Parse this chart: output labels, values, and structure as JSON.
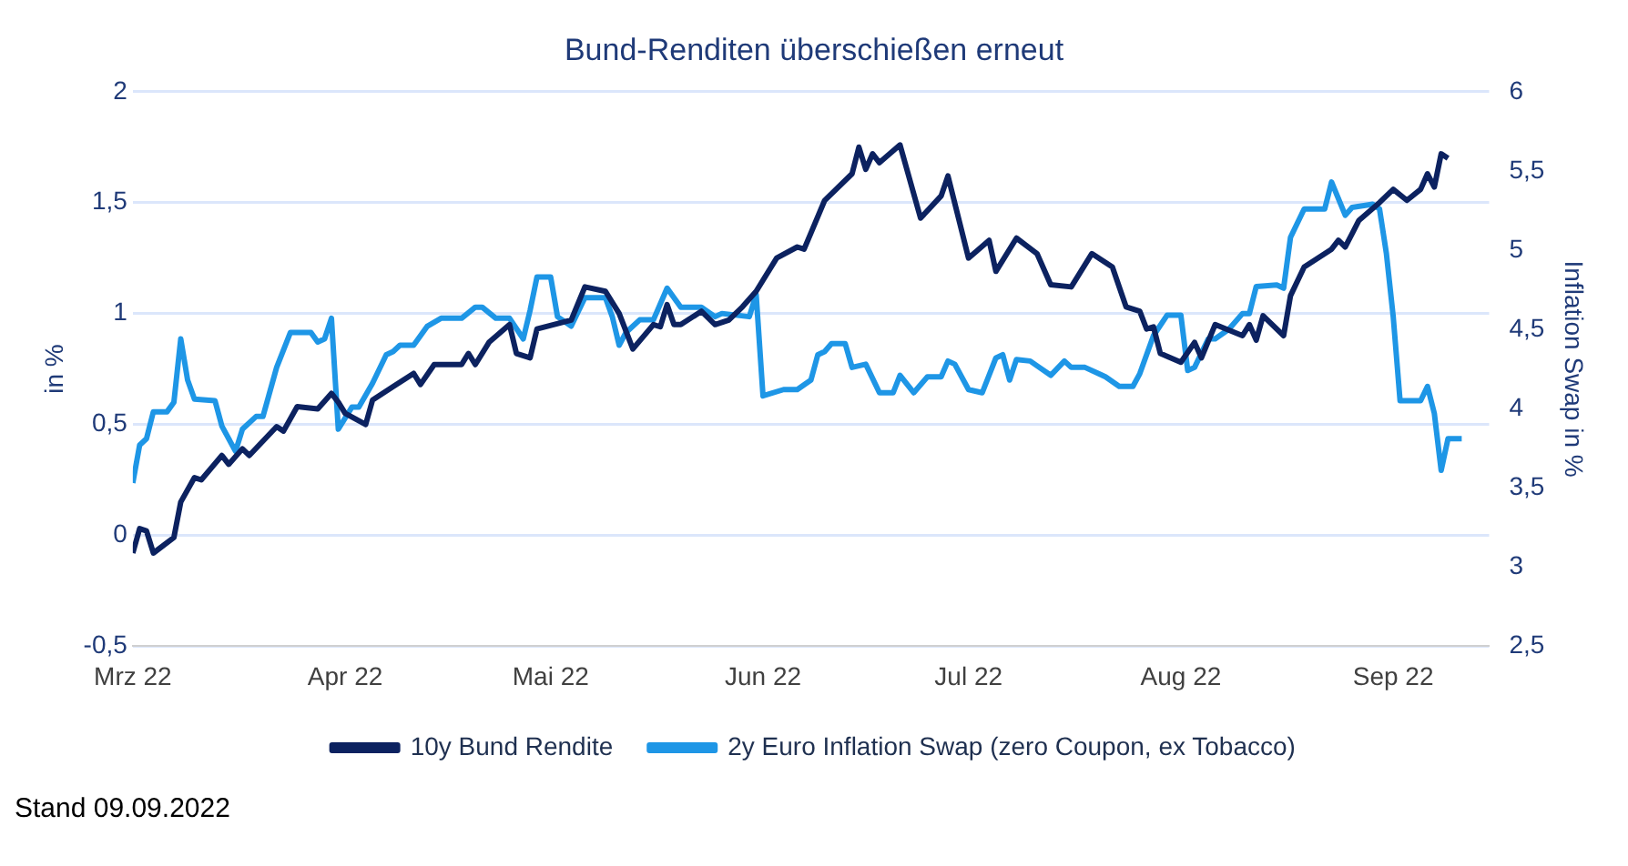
{
  "chart_data": {
    "type": "line",
    "title": "Bund-Renditen überschießen erneut",
    "ylabel": "in %",
    "y2label": "Inflation Swap in %",
    "annotations": [
      "Stand 09.09.2022"
    ],
    "xlim": [
      "2022-03-01",
      "2022-09-15"
    ],
    "xticks": [
      {
        "value": "2022-03-01",
        "label": "Mrz 22"
      },
      {
        "value": "2022-04-01",
        "label": "Apr 22"
      },
      {
        "value": "2022-05-01",
        "label": "Mai 22"
      },
      {
        "value": "2022-06-01",
        "label": "Jun 22"
      },
      {
        "value": "2022-07-01",
        "label": "Jul 22"
      },
      {
        "value": "2022-08-01",
        "label": "Aug 22"
      },
      {
        "value": "2022-09-01",
        "label": "Sep 22"
      }
    ],
    "ylim": [
      -0.5,
      2
    ],
    "yticks": [
      {
        "value": -0.5,
        "label": "-0,5"
      },
      0,
      {
        "value": 0.5,
        "label": "0,5"
      },
      1,
      {
        "value": 1.5,
        "label": "1,5"
      },
      2
    ],
    "y2lim": [
      2.5,
      6
    ],
    "y2ticks": [
      {
        "value": 2.5,
        "label": "2,5"
      },
      3,
      {
        "value": 3.5,
        "label": "3,5"
      },
      4,
      {
        "value": 4.5,
        "label": "4,5"
      },
      5,
      {
        "value": 5.5,
        "label": "5,5"
      },
      6
    ],
    "grid": "y",
    "legend": "bottom",
    "marker": "none",
    "line_style": "solid",
    "series": [
      {
        "name": "10y Bund Rendite",
        "color": "#0c2260",
        "x": [
          "2022-03-01",
          "2022-03-02",
          "2022-03-03",
          "2022-03-04",
          "2022-03-07",
          "2022-03-08",
          "2022-03-10",
          "2022-03-11",
          "2022-03-14",
          "2022-03-15",
          "2022-03-17",
          "2022-03-18",
          "2022-03-22",
          "2022-03-23",
          "2022-03-25",
          "2022-03-28",
          "2022-03-30",
          "2022-03-31",
          "2022-04-01",
          "2022-04-04",
          "2022-04-05",
          "2022-04-08",
          "2022-04-11",
          "2022-04-12",
          "2022-04-14",
          "2022-04-18",
          "2022-04-19",
          "2022-04-20",
          "2022-04-22",
          "2022-04-25",
          "2022-04-26",
          "2022-04-28",
          "2022-04-29",
          "2022-05-04",
          "2022-05-06",
          "2022-05-09",
          "2022-05-11",
          "2022-05-13",
          "2022-05-16",
          "2022-05-17",
          "2022-05-18",
          "2022-05-19",
          "2022-05-20",
          "2022-05-23",
          "2022-05-25",
          "2022-05-27",
          "2022-05-29",
          "2022-05-31",
          "2022-06-03",
          "2022-06-06",
          "2022-06-07",
          "2022-06-10",
          "2022-06-14",
          "2022-06-15",
          "2022-06-16",
          "2022-06-17",
          "2022-06-18",
          "2022-06-21",
          "2022-06-24",
          "2022-06-27",
          "2022-06-28",
          "2022-07-01",
          "2022-07-04",
          "2022-07-05",
          "2022-07-08",
          "2022-07-11",
          "2022-07-13",
          "2022-07-16",
          "2022-07-19",
          "2022-07-22",
          "2022-07-24",
          "2022-07-26",
          "2022-07-27",
          "2022-07-28",
          "2022-07-29",
          "2022-08-01",
          "2022-08-03",
          "2022-08-04",
          "2022-08-06",
          "2022-08-10",
          "2022-08-11",
          "2022-08-12",
          "2022-08-13",
          "2022-08-16",
          "2022-08-17",
          "2022-08-19",
          "2022-08-23",
          "2022-08-24",
          "2022-08-25",
          "2022-08-27",
          "2022-08-30",
          "2022-09-01",
          "2022-09-03",
          "2022-09-05",
          "2022-09-06",
          "2022-09-07",
          "2022-09-08",
          "2022-09-09"
        ],
        "values": [
          -0.08,
          0.03,
          0.02,
          -0.08,
          -0.01,
          0.15,
          0.26,
          0.25,
          0.36,
          0.32,
          0.39,
          0.36,
          0.49,
          0.47,
          0.58,
          0.57,
          0.64,
          0.6,
          0.55,
          0.5,
          0.61,
          0.67,
          0.73,
          0.68,
          0.77,
          0.77,
          0.82,
          0.77,
          0.87,
          0.95,
          0.82,
          0.8,
          0.93,
          0.97,
          1.12,
          1.1,
          1.0,
          0.84,
          0.95,
          0.94,
          1.04,
          0.95,
          0.95,
          1.01,
          0.95,
          0.97,
          1.03,
          1.1,
          1.25,
          1.3,
          1.29,
          1.51,
          1.63,
          1.75,
          1.65,
          1.72,
          1.68,
          1.76,
          1.43,
          1.53,
          1.62,
          1.25,
          1.33,
          1.19,
          1.34,
          1.27,
          1.13,
          1.12,
          1.27,
          1.21,
          1.03,
          1.01,
          0.93,
          0.94,
          0.82,
          0.78,
          0.87,
          0.8,
          0.95,
          0.9,
          0.95,
          0.88,
          0.99,
          0.9,
          1.08,
          1.21,
          1.29,
          1.33,
          1.3,
          1.42,
          1.5,
          1.56,
          1.51,
          1.56,
          1.63,
          1.57,
          1.72,
          1.7
        ]
      },
      {
        "name": "2y Euro Inflation Swap (zero Coupon, ex Tobacco)",
        "color": "#1e96e6",
        "axis": "y2",
        "x": [
          "2022-03-01",
          "2022-03-02",
          "2022-03-03",
          "2022-03-04",
          "2022-03-06",
          "2022-03-07",
          "2022-03-08",
          "2022-03-09",
          "2022-03-10",
          "2022-03-13",
          "2022-03-14",
          "2022-03-16",
          "2022-03-17",
          "2022-03-19",
          "2022-03-20",
          "2022-03-22",
          "2022-03-24",
          "2022-03-27",
          "2022-03-28",
          "2022-03-29",
          "2022-03-30",
          "2022-03-31",
          "2022-04-02",
          "2022-04-03",
          "2022-04-05",
          "2022-04-07",
          "2022-04-08",
          "2022-04-09",
          "2022-04-11",
          "2022-04-13",
          "2022-04-15",
          "2022-04-18",
          "2022-04-20",
          "2022-04-21",
          "2022-04-23",
          "2022-04-25",
          "2022-04-27",
          "2022-04-28",
          "2022-04-29",
          "2022-05-01",
          "2022-05-02",
          "2022-05-04",
          "2022-05-06",
          "2022-05-09",
          "2022-05-10",
          "2022-05-11",
          "2022-05-12",
          "2022-05-14",
          "2022-05-16",
          "2022-05-18",
          "2022-05-20",
          "2022-05-23",
          "2022-05-25",
          "2022-05-26",
          "2022-05-30",
          "2022-05-31",
          "2022-06-01",
          "2022-06-04",
          "2022-06-06",
          "2022-06-08",
          "2022-06-09",
          "2022-06-10",
          "2022-06-11",
          "2022-06-13",
          "2022-06-14",
          "2022-06-16",
          "2022-06-18",
          "2022-06-20",
          "2022-06-21",
          "2022-06-23",
          "2022-06-25",
          "2022-06-27",
          "2022-06-28",
          "2022-06-29",
          "2022-07-01",
          "2022-07-03",
          "2022-07-05",
          "2022-07-06",
          "2022-07-07",
          "2022-07-08",
          "2022-07-10",
          "2022-07-11",
          "2022-07-13",
          "2022-07-15",
          "2022-07-16",
          "2022-07-18",
          "2022-07-20",
          "2022-07-21",
          "2022-07-23",
          "2022-07-25",
          "2022-07-26",
          "2022-07-28",
          "2022-07-30",
          "2022-08-01",
          "2022-08-02",
          "2022-08-03",
          "2022-08-05",
          "2022-08-06",
          "2022-08-08",
          "2022-08-10",
          "2022-08-11",
          "2022-08-12",
          "2022-08-15",
          "2022-08-16",
          "2022-08-17",
          "2022-08-19",
          "2022-08-22",
          "2022-08-23",
          "2022-08-25",
          "2022-08-26",
          "2022-08-29",
          "2022-08-30",
          "2022-08-31",
          "2022-09-01",
          "2022-09-02",
          "2022-09-05",
          "2022-09-06",
          "2022-09-07",
          "2022-09-08",
          "2022-09-09",
          "2022-09-11"
        ],
        "values": [
          3.53,
          3.77,
          3.81,
          3.98,
          3.98,
          4.04,
          4.44,
          4.18,
          4.06,
          4.05,
          3.89,
          3.73,
          3.87,
          3.95,
          3.95,
          4.26,
          4.48,
          4.48,
          4.42,
          4.44,
          4.57,
          3.87,
          4.01,
          4.01,
          4.16,
          4.34,
          4.36,
          4.4,
          4.4,
          4.52,
          4.57,
          4.57,
          4.64,
          4.64,
          4.57,
          4.57,
          4.44,
          4.62,
          4.83,
          4.83,
          4.58,
          4.52,
          4.7,
          4.7,
          4.58,
          4.4,
          4.48,
          4.56,
          4.56,
          4.76,
          4.64,
          4.64,
          4.58,
          4.6,
          4.58,
          4.72,
          4.08,
          4.12,
          4.12,
          4.18,
          4.34,
          4.36,
          4.41,
          4.41,
          4.26,
          4.28,
          4.1,
          4.1,
          4.21,
          4.1,
          4.2,
          4.2,
          4.3,
          4.28,
          4.12,
          4.1,
          4.32,
          4.34,
          4.18,
          4.31,
          4.3,
          4.27,
          4.21,
          4.3,
          4.26,
          4.26,
          4.22,
          4.2,
          4.14,
          4.14,
          4.22,
          4.46,
          4.59,
          4.59,
          4.24,
          4.26,
          4.44,
          4.44,
          4.5,
          4.6,
          4.6,
          4.77,
          4.78,
          4.76,
          5.08,
          5.26,
          5.26,
          5.43,
          5.22,
          5.27,
          5.29,
          5.26,
          4.98,
          4.58,
          4.05,
          4.05,
          4.14,
          3.97,
          3.61,
          3.81,
          3.81
        ]
      }
    ]
  }
}
